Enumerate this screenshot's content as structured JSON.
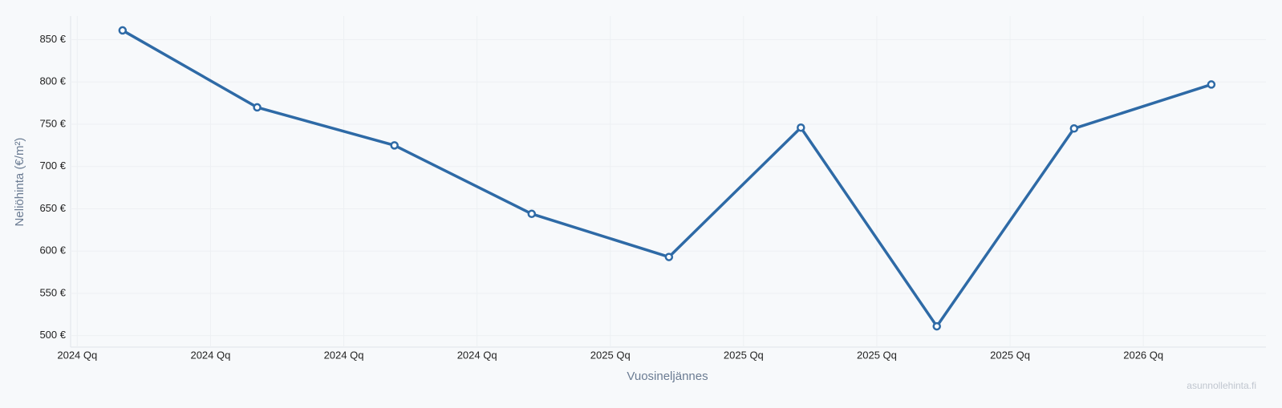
{
  "chart_data": {
    "type": "line",
    "x_label": "Vuosineljännes",
    "y_label": "Neliöhinta (€/m²)",
    "watermark": "asunnollehinta.fi",
    "x": [
      0.34,
      1.35,
      2.38,
      3.41,
      4.44,
      5.43,
      6.45,
      7.48,
      8.51
    ],
    "values": [
      861,
      770,
      725,
      644,
      593,
      746,
      511,
      745,
      797
    ],
    "color": "#2e6aa6",
    "xlim": [
      -0.05,
      8.92
    ],
    "xticks": [
      {
        "value": 0,
        "label": "2024 Qq"
      },
      {
        "value": 1,
        "label": "2024 Qq"
      },
      {
        "value": 2,
        "label": "2024 Qq"
      },
      {
        "value": 3,
        "label": "2024 Qq"
      },
      {
        "value": 4,
        "label": "2025 Qq"
      },
      {
        "value": 5,
        "label": "2025 Qq"
      },
      {
        "value": 6,
        "label": "2025 Qq"
      },
      {
        "value": 7,
        "label": "2025 Qq"
      },
      {
        "value": 8,
        "label": "2026 Qq"
      }
    ],
    "ylim": [
      494,
      878
    ],
    "yticks": [
      {
        "value": 500,
        "label": "500 €"
      },
      {
        "value": 550,
        "label": "550 €"
      },
      {
        "value": 600,
        "label": "600 €"
      },
      {
        "value": 650,
        "label": "650 €"
      },
      {
        "value": 700,
        "label": "700 €"
      },
      {
        "value": 750,
        "label": "750 €"
      },
      {
        "value": 800,
        "label": "800 €"
      },
      {
        "value": 850,
        "label": "850 €"
      }
    ],
    "grid": true
  }
}
